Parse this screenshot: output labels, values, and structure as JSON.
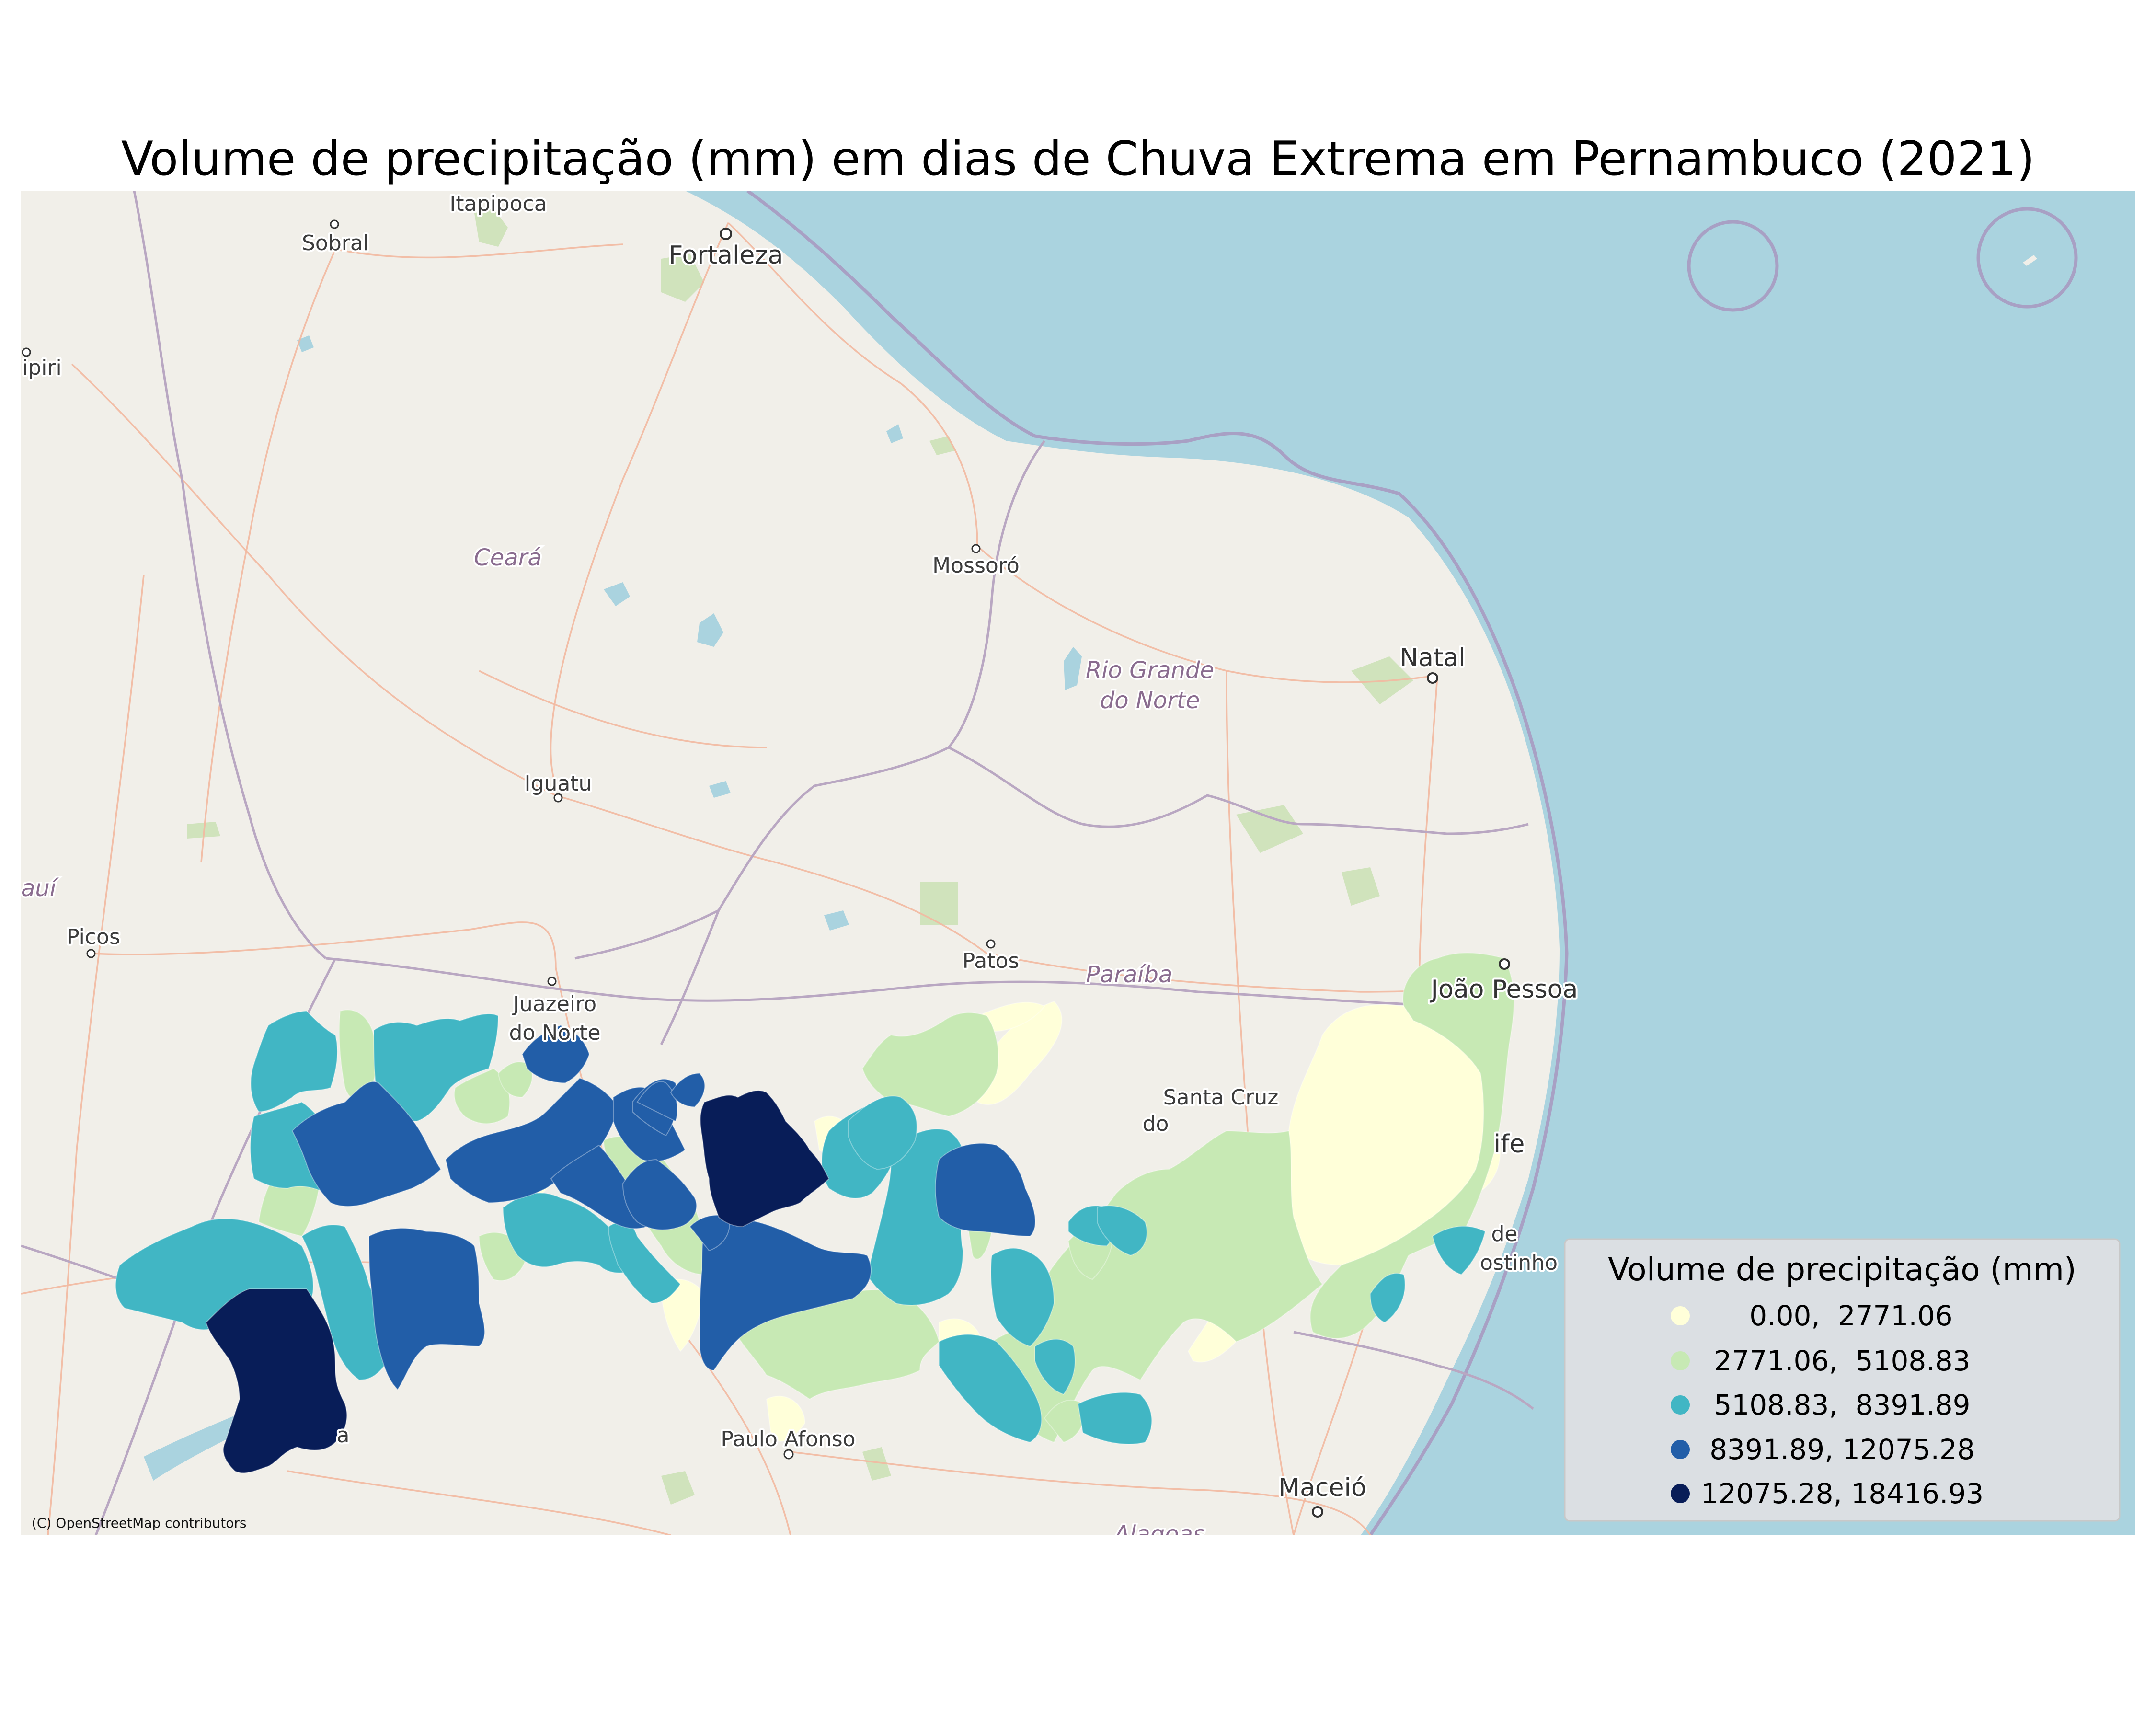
{
  "title": "Volume de precipitação (mm) em dias de Chuva Extrema em Pernambuco (2021)",
  "attribution": "(C) OpenStreetMap contributors",
  "legend": {
    "title": "Volume de precipitação (mm)",
    "items": [
      {
        "label": "  0.00,  2771.06",
        "color": "#ffffd9"
      },
      {
        "label": "2771.06,  5108.83",
        "color": "#c7e9b4"
      },
      {
        "label": "5108.83,  8391.89",
        "color": "#41b6c4"
      },
      {
        "label": "8391.89, 12075.28",
        "color": "#225ea8"
      },
      {
        "label": "12075.28, 18416.93",
        "color": "#081d58"
      }
    ]
  },
  "basemap": {
    "land_color": "#f1efe9",
    "sea_color": "#aad3df",
    "road_color": "#f2b8a0",
    "border_color": "#b9a7c2",
    "place_labels": {
      "itapipoca": "Itapipoca",
      "sobral": "Sobral",
      "fortaleza": "Fortaleza",
      "piripiri": "ipiri",
      "ceara": "Ceará",
      "mossoro": "Mossoró",
      "rio_grande_1": "Rio Grande",
      "rio_grande_2": "do Norte",
      "natal": "Natal",
      "iguatu": "Iguatu",
      "piaui": "auí",
      "picos": "Picos",
      "patos": "Patos",
      "paraiba": "Paraíba",
      "joao_pessoa": "João Pessoa",
      "juazeiro_1": "Juazeiro",
      "juazeiro_2": "do Norte",
      "santa_cruz_1": "Santa Cruz",
      "santa_cruz_2": "do",
      "recife": "ife",
      "cabo_1": "de",
      "cabo_2": "ostinho",
      "paulo_afonso": "Paulo Afonso",
      "petrolina": "a",
      "maceio": "Maceió",
      "alagoas": "Alagoas"
    }
  }
}
